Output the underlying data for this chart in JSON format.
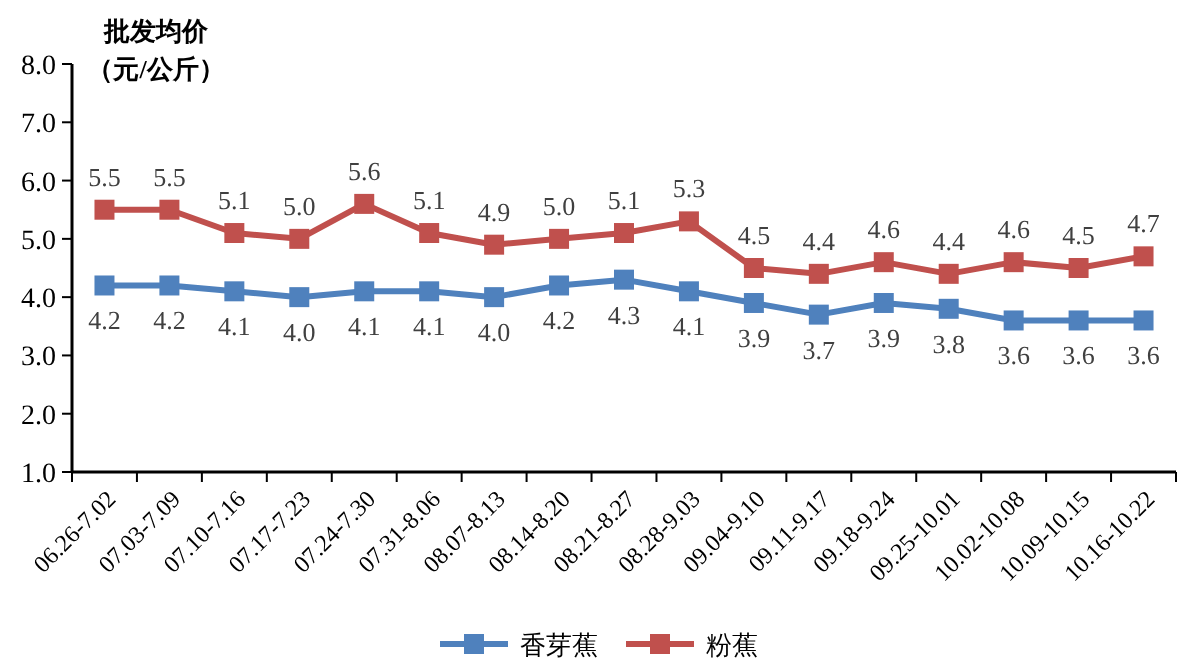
{
  "chart_data": {
    "type": "line",
    "ylabel": "批发均价（元/公斤）",
    "categories": [
      "06.26-7.02",
      "07.03-7.09",
      "07.10-7.16",
      "07.17-7.23",
      "07.24-7.30",
      "07.31-8.06",
      "08.07-8.13",
      "08.14-8.20",
      "08.21-8.27",
      "08.28-9.03",
      "09.04-9.10",
      "09.11-9.17",
      "09.18-9.24",
      "09.25-10.01",
      "10.02-10.08",
      "10.09-10.15",
      "10.16-10.22"
    ],
    "series": [
      {
        "name": "香芽蕉",
        "color": "#4f81bd",
        "values": [
          4.2,
          4.2,
          4.1,
          4.0,
          4.1,
          4.1,
          4.0,
          4.2,
          4.3,
          4.1,
          3.9,
          3.7,
          3.9,
          3.8,
          3.6,
          3.6,
          3.6
        ],
        "value_labels": [
          "4.2",
          "4.2",
          "4.1",
          "4.0",
          "4.1",
          "4.1",
          "4.0",
          "4.2",
          "4.3",
          "4.1",
          "3.9",
          "3.7",
          "3.9",
          "3.8",
          "3.6",
          "3.6",
          "3.6"
        ]
      },
      {
        "name": "粉蕉",
        "color": "#c0504d",
        "values": [
          5.5,
          5.5,
          5.1,
          5.0,
          5.6,
          5.1,
          4.9,
          5.0,
          5.1,
          5.3,
          4.5,
          4.4,
          4.6,
          4.4,
          4.6,
          4.5,
          4.7
        ],
        "value_labels": [
          "5.5",
          "5.5",
          "5.1",
          "5.0",
          "5.6",
          "5.1",
          "4.9",
          "5.0",
          "5.1",
          "5.3",
          "4.5",
          "4.4",
          "4.6",
          "4.4",
          "4.6",
          "4.5",
          "4.7"
        ]
      }
    ],
    "ylim": [
      1,
      8
    ],
    "yticks": [
      {
        "value": 1,
        "label": "1.0"
      },
      {
        "value": 2,
        "label": "2.0"
      },
      {
        "value": 3,
        "label": "3.0"
      },
      {
        "value": 4,
        "label": "4.0"
      },
      {
        "value": 5,
        "label": "5.0"
      },
      {
        "value": 6,
        "label": "6.0"
      },
      {
        "value": 7,
        "label": "7.0"
      },
      {
        "value": 8,
        "label": "8.0"
      }
    ],
    "marker": "square",
    "line_style": "solid",
    "grid": false,
    "legend": "bottom"
  }
}
